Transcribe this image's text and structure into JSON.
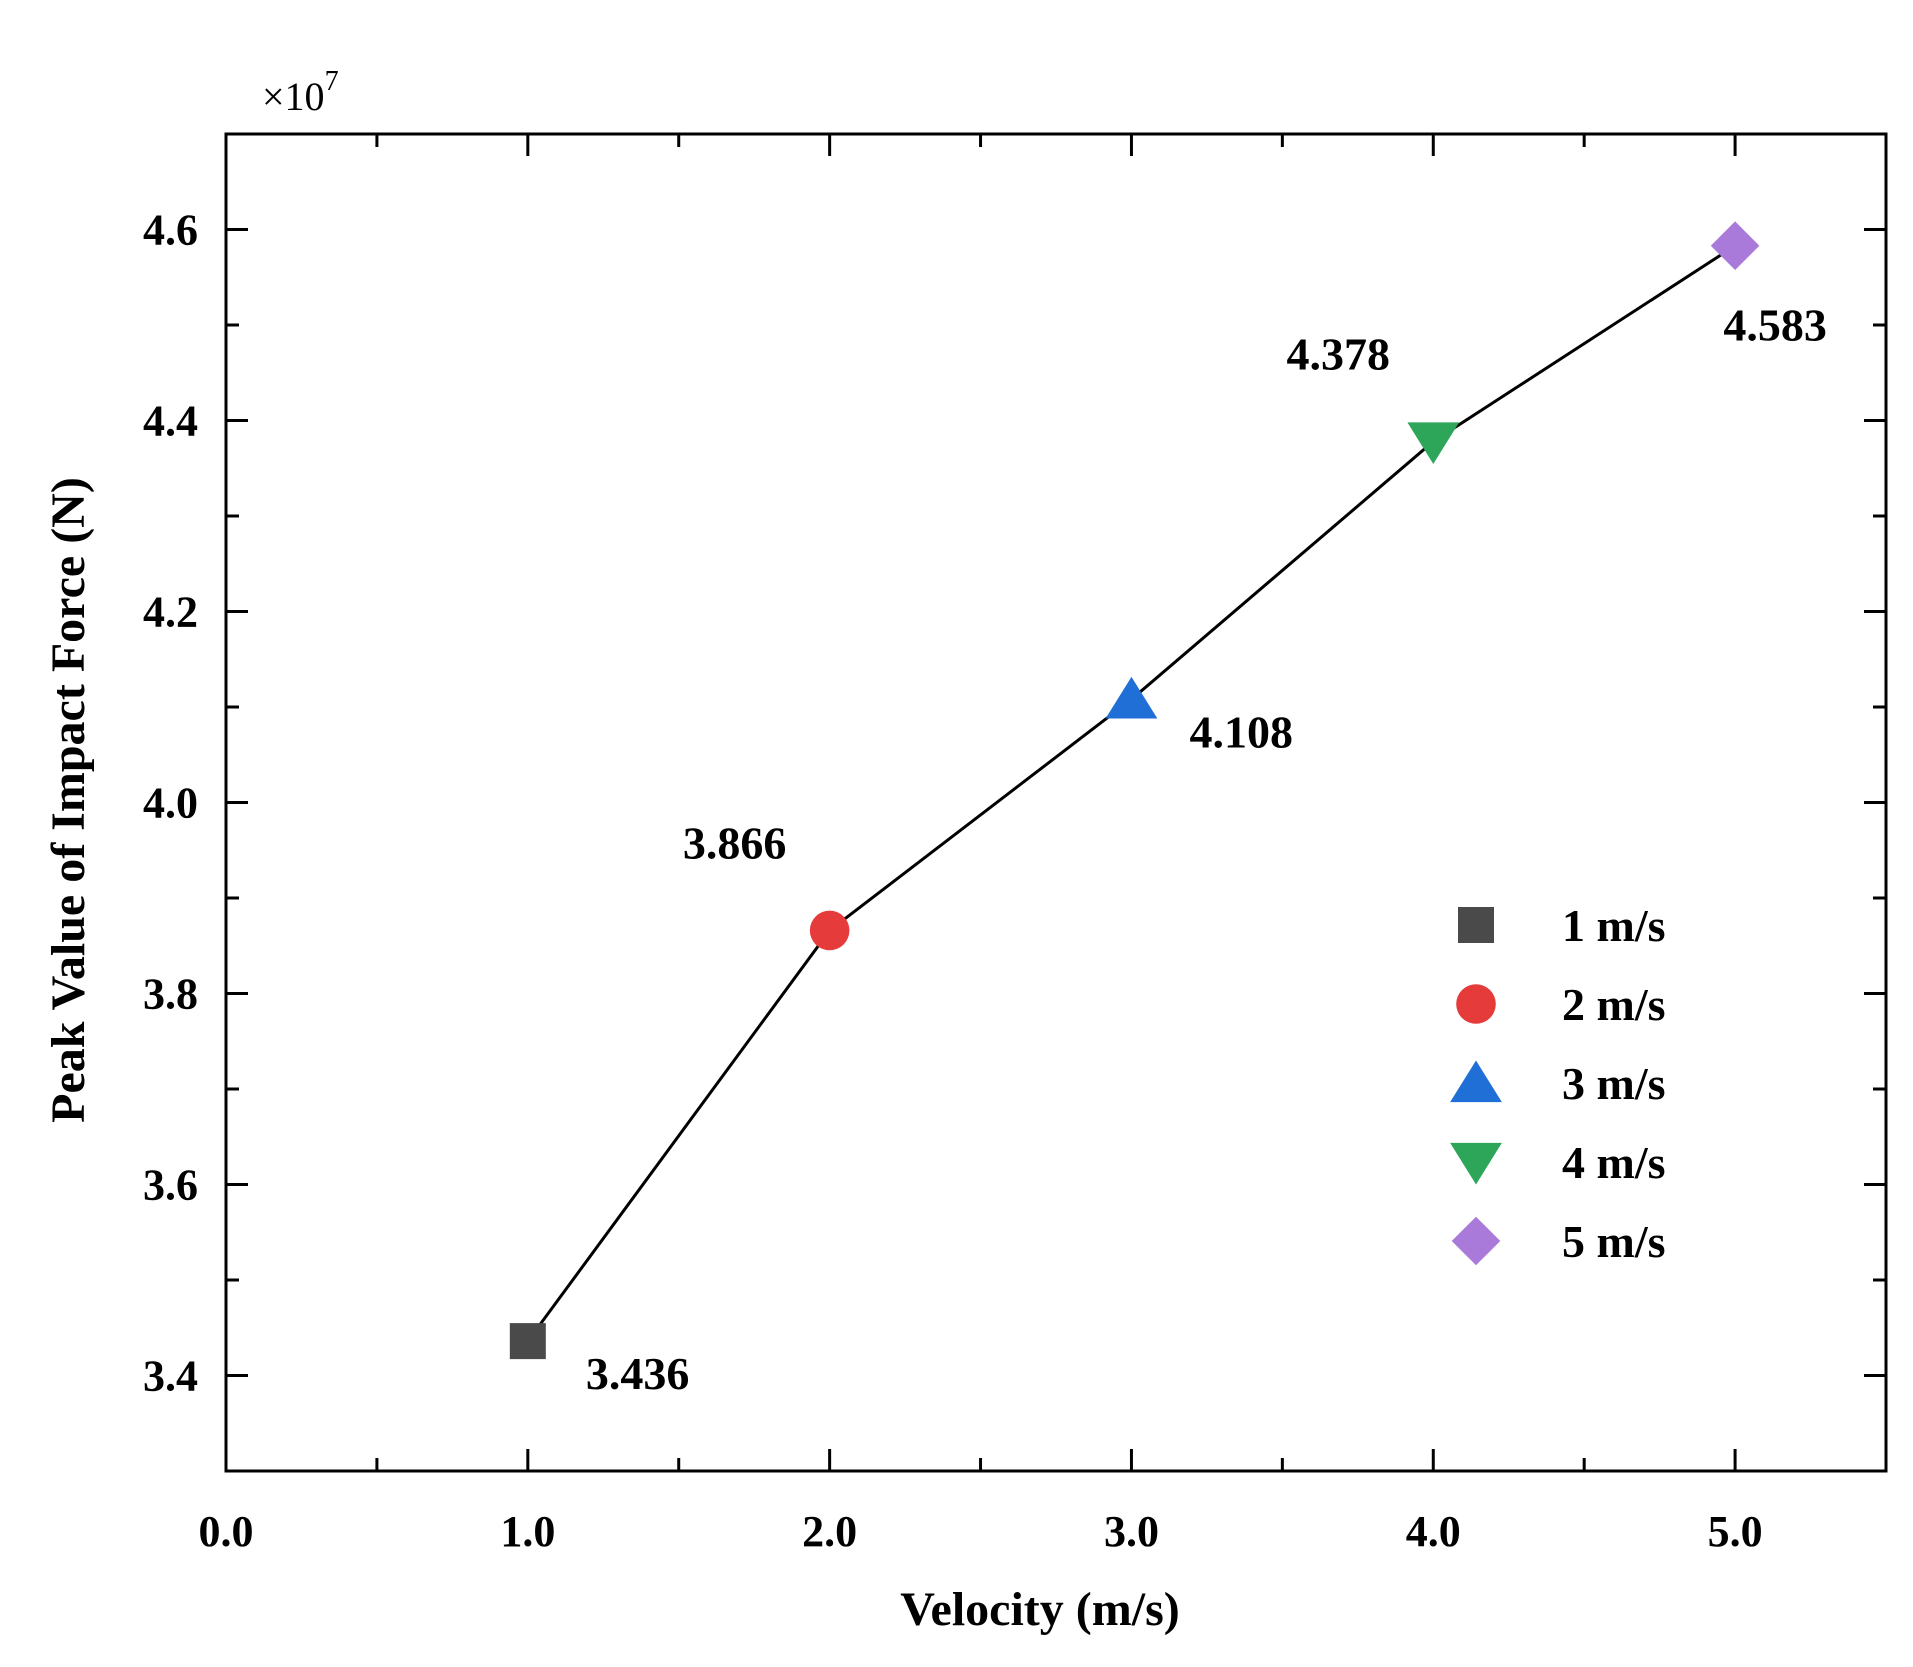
{
  "chart_data": {
    "type": "scatter",
    "title": "",
    "xlabel": "Velocity (m/s)",
    "ylabel": "Peak Value of Impact Force (N)",
    "y_multiplier": {
      "base": "×10",
      "exponent": "7"
    },
    "xlim": [
      0,
      5.5
    ],
    "ylim": [
      3.3,
      4.7
    ],
    "x_ticks": [
      0,
      1,
      2,
      3,
      4,
      5
    ],
    "x_tick_labels": [
      "0.0",
      "1.0",
      "2.0",
      "3.0",
      "4.0",
      "5.0"
    ],
    "y_ticks": [
      3.4,
      3.6,
      3.8,
      4.0,
      4.2,
      4.4,
      4.6
    ],
    "y_tick_labels": [
      "3.4",
      "3.6",
      "3.8",
      "4.0",
      "4.2",
      "4.4",
      "4.6"
    ],
    "connect_line": true,
    "line_color": "#000000",
    "legend_position": "center-right",
    "series": [
      {
        "name": "1 m/s",
        "x": 1,
        "y": 3.436,
        "label": "3.436",
        "marker": "square",
        "color": "#4a4a4a",
        "label_side": "below-right"
      },
      {
        "name": "2 m/s",
        "x": 2,
        "y": 3.866,
        "label": "3.866",
        "marker": "circle",
        "color": "#e63b3b",
        "label_side": "above-left"
      },
      {
        "name": "3 m/s",
        "x": 3,
        "y": 4.108,
        "label": "4.108",
        "marker": "triangle-up",
        "color": "#1f6fd6",
        "label_side": "below-right"
      },
      {
        "name": "4 m/s",
        "x": 4,
        "y": 4.378,
        "label": "4.378",
        "marker": "triangle-down",
        "color": "#2ea65a",
        "label_side": "above-left"
      },
      {
        "name": "5 m/s",
        "x": 5,
        "y": 4.583,
        "label": "4.583",
        "marker": "diamond",
        "color": "#a97ad9",
        "label_side": "below"
      }
    ]
  }
}
